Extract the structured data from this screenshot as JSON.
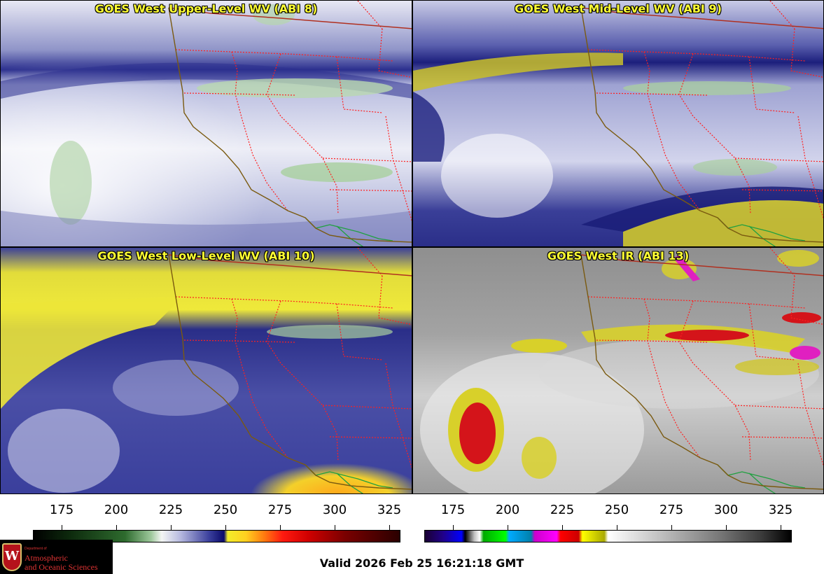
{
  "panels": [
    {
      "title": "GOES West Upper-Level WV (ABI 8)",
      "product": "upper-wv"
    },
    {
      "title": "GOES West Mid-Level WV (ABI 9)",
      "product": "mid-wv"
    },
    {
      "title": "GOES West Low-Level WV (ABI 10)",
      "product": "low-wv"
    },
    {
      "title": "GOES West IR (ABI 13)",
      "product": "ir"
    }
  ],
  "colorbars": [
    {
      "name": "water-vapor",
      "ticks": [
        "175",
        "200",
        "225",
        "250",
        "275",
        "300",
        "325"
      ]
    },
    {
      "name": "infrared",
      "ticks": [
        "175",
        "200",
        "225",
        "250",
        "275",
        "300",
        "325"
      ]
    }
  ],
  "colors": {
    "title_text": "#ffff33",
    "state_borders": "#ff2020",
    "coastline": "#7a5a10",
    "country_border": "#b03020",
    "mexico_states": "#20a040"
  },
  "logo": {
    "crest_letter": "W",
    "dept": "Department of",
    "line1": "Atmospheric",
    "line2": "and Oceanic Sciences"
  },
  "valid_time": "Valid 2026 Feb 25 16:21:18 GMT"
}
